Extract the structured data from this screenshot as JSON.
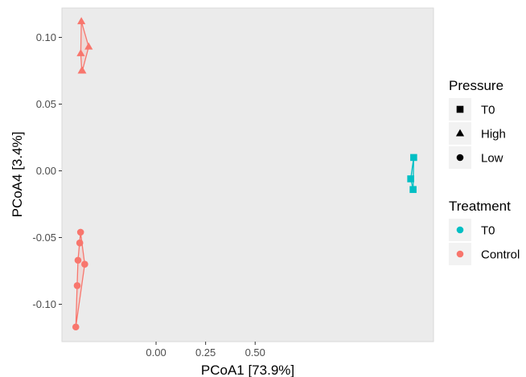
{
  "chart_data": {
    "type": "scatter",
    "xlabel": "PCoA1 [73.9%]",
    "ylabel": "PCoA4 [3.4%]",
    "xlim": [
      -0.475,
      1.4
    ],
    "ylim": [
      -0.128,
      0.122
    ],
    "x_ticks": [
      0.0,
      0.25,
      0.5
    ],
    "x_tick_labels": [
      "0.00",
      "0.25",
      "0.50"
    ],
    "y_ticks": [
      -0.1,
      -0.05,
      0.0,
      0.05,
      0.1
    ],
    "y_tick_labels": [
      "-0.10",
      "-0.05",
      "0.00",
      "0.05",
      "0.10"
    ],
    "grid": false,
    "background": "#ebebeb",
    "legend_position": "right",
    "legends": [
      {
        "title": "Pressure",
        "items": [
          {
            "label": "T0",
            "shape": "square"
          },
          {
            "label": "High",
            "shape": "triangle"
          },
          {
            "label": "Low",
            "shape": "circle"
          }
        ]
      },
      {
        "title": "Treatment",
        "items": [
          {
            "label": "T0",
            "color": "#00bfc4"
          },
          {
            "label": "Control",
            "color": "#f8766d"
          }
        ]
      }
    ],
    "groups": [
      {
        "treatment": "T0",
        "pressure": "T0",
        "shape": "square",
        "color": "#00bfc4",
        "points": [
          [
            1.285,
            -0.006
          ],
          [
            1.3,
            0.01
          ],
          [
            1.297,
            -0.014
          ]
        ]
      },
      {
        "treatment": "Control",
        "pressure": "High",
        "shape": "triangle",
        "color": "#f8766d",
        "points": [
          [
            -0.377,
            0.112
          ],
          [
            -0.38,
            0.088
          ],
          [
            -0.34,
            0.093
          ],
          [
            -0.375,
            0.075
          ],
          [
            -0.372,
            0.075
          ]
        ]
      },
      {
        "treatment": "Control",
        "pressure": "Low",
        "shape": "circle",
        "color": "#f8766d",
        "points": [
          [
            -0.381,
            -0.046
          ],
          [
            -0.385,
            -0.054
          ],
          [
            -0.394,
            -0.067
          ],
          [
            -0.36,
            -0.07
          ],
          [
            -0.398,
            -0.086
          ],
          [
            -0.405,
            -0.117
          ]
        ]
      }
    ]
  }
}
